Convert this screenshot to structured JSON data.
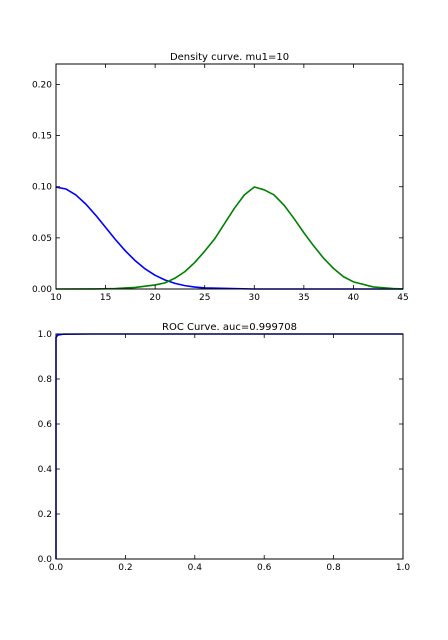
{
  "chart_data": [
    {
      "type": "line",
      "title": "Density curve. mu1=10",
      "xlabel": "",
      "ylabel": "",
      "xlim": [
        10,
        45
      ],
      "ylim": [
        0,
        0.22
      ],
      "xticks": [
        "10",
        "15",
        "20",
        "25",
        "30",
        "35",
        "40",
        "45"
      ],
      "yticks": [
        "0.00",
        "0.05",
        "0.10",
        "0.15",
        "0.20"
      ],
      "grid": false,
      "series": [
        {
          "color": "#0000ff",
          "x": [
            10,
            11,
            12,
            13,
            14,
            15,
            16,
            17,
            18,
            19,
            20,
            21,
            22,
            23,
            24,
            25,
            30,
            35,
            40,
            45
          ],
          "y": [
            0.0997,
            0.0978,
            0.092,
            0.0831,
            0.0722,
            0.0603,
            0.0483,
            0.0372,
            0.0276,
            0.0196,
            0.0134,
            0.0088,
            0.0055,
            0.0033,
            0.0019,
            0.001,
            0.0,
            0.0,
            0.0,
            0.0
          ]
        },
        {
          "color": "#008000",
          "x": [
            10,
            14,
            16,
            18,
            20,
            21,
            22,
            23,
            24,
            25,
            26,
            27,
            28,
            29,
            30,
            31,
            32,
            33,
            34,
            35,
            36,
            37,
            38,
            39,
            40,
            42,
            44,
            45
          ],
          "y": [
            0.0,
            0.0001,
            0.0005,
            0.0015,
            0.004,
            0.006,
            0.0106,
            0.017,
            0.026,
            0.037,
            0.049,
            0.064,
            0.079,
            0.092,
            0.0997,
            0.097,
            0.092,
            0.082,
            0.069,
            0.055,
            0.042,
            0.03,
            0.02,
            0.012,
            0.007,
            0.002,
            0.0004,
            0.0001
          ]
        }
      ]
    },
    {
      "type": "line",
      "title": "ROC Curve. auc=0.999708",
      "xlabel": "",
      "ylabel": "",
      "xlim": [
        0,
        1
      ],
      "ylim": [
        0,
        1
      ],
      "xticks": [
        "0.0",
        "0.2",
        "0.4",
        "0.6",
        "0.8",
        "1.0"
      ],
      "yticks": [
        "0.0",
        "0.2",
        "0.4",
        "0.6",
        "0.8",
        "1.0"
      ],
      "grid": false,
      "series": [
        {
          "color": "#0000ff",
          "x": [
            0.0,
            0.0,
            0.0,
            0.005,
            0.02,
            0.1,
            1.0
          ],
          "y": [
            0.0,
            0.95,
            0.985,
            0.995,
            0.999,
            1.0,
            1.0
          ]
        }
      ]
    }
  ]
}
